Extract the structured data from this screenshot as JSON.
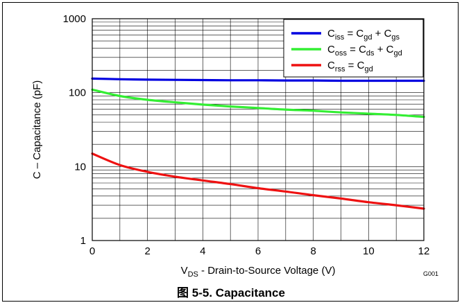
{
  "chart_data": {
    "type": "line",
    "caption": "图 5-5. Capacitance",
    "figure_id": "G001",
    "xlabel": {
      "main": "V",
      "sub": "DS",
      "rest": " - Drain-to-Source Voltage (V)"
    },
    "ylabel": "C – Capacitance  (pF)",
    "xlim": [
      0,
      12
    ],
    "ylim": [
      1,
      1000
    ],
    "yscale": "log",
    "grid": true,
    "legend_position": "top-right",
    "x_ticks": [
      "0",
      "2",
      "4",
      "6",
      "8",
      "10",
      "12"
    ],
    "y_ticks": [
      "1",
      "10",
      "100",
      "1000"
    ],
    "x": [
      0,
      1,
      2,
      3,
      4,
      5,
      6,
      7,
      8,
      9,
      10,
      11,
      12
    ],
    "series": [
      {
        "name_parts": [
          [
            "C",
            ""
          ],
          [
            "iss",
            "sub"
          ],
          [
            " = C",
            ""
          ],
          [
            "gd",
            "sub"
          ],
          [
            " + C",
            ""
          ],
          [
            "gs",
            "sub"
          ]
        ],
        "color": "#0000e0",
        "values": [
          155,
          152,
          150,
          149,
          148,
          147,
          147,
          146,
          146,
          145,
          145,
          145,
          145
        ]
      },
      {
        "name_parts": [
          [
            "C",
            ""
          ],
          [
            "oss",
            "sub"
          ],
          [
            " = C",
            ""
          ],
          [
            "ds",
            "sub"
          ],
          [
            " + C",
            ""
          ],
          [
            "gd",
            "sub"
          ]
        ],
        "color": "#33ee33",
        "values": [
          110,
          90,
          80,
          74,
          69,
          65,
          62,
          59,
          57,
          54,
          52,
          50,
          47
        ]
      },
      {
        "name_parts": [
          [
            "C",
            ""
          ],
          [
            "rss",
            "sub"
          ],
          [
            " =  C",
            ""
          ],
          [
            "gd",
            "sub"
          ]
        ],
        "color": "#ee1111",
        "values": [
          15,
          10.5,
          8.5,
          7.3,
          6.5,
          5.8,
          5.1,
          4.6,
          4.1,
          3.7,
          3.3,
          3.0,
          2.7
        ]
      }
    ]
  }
}
